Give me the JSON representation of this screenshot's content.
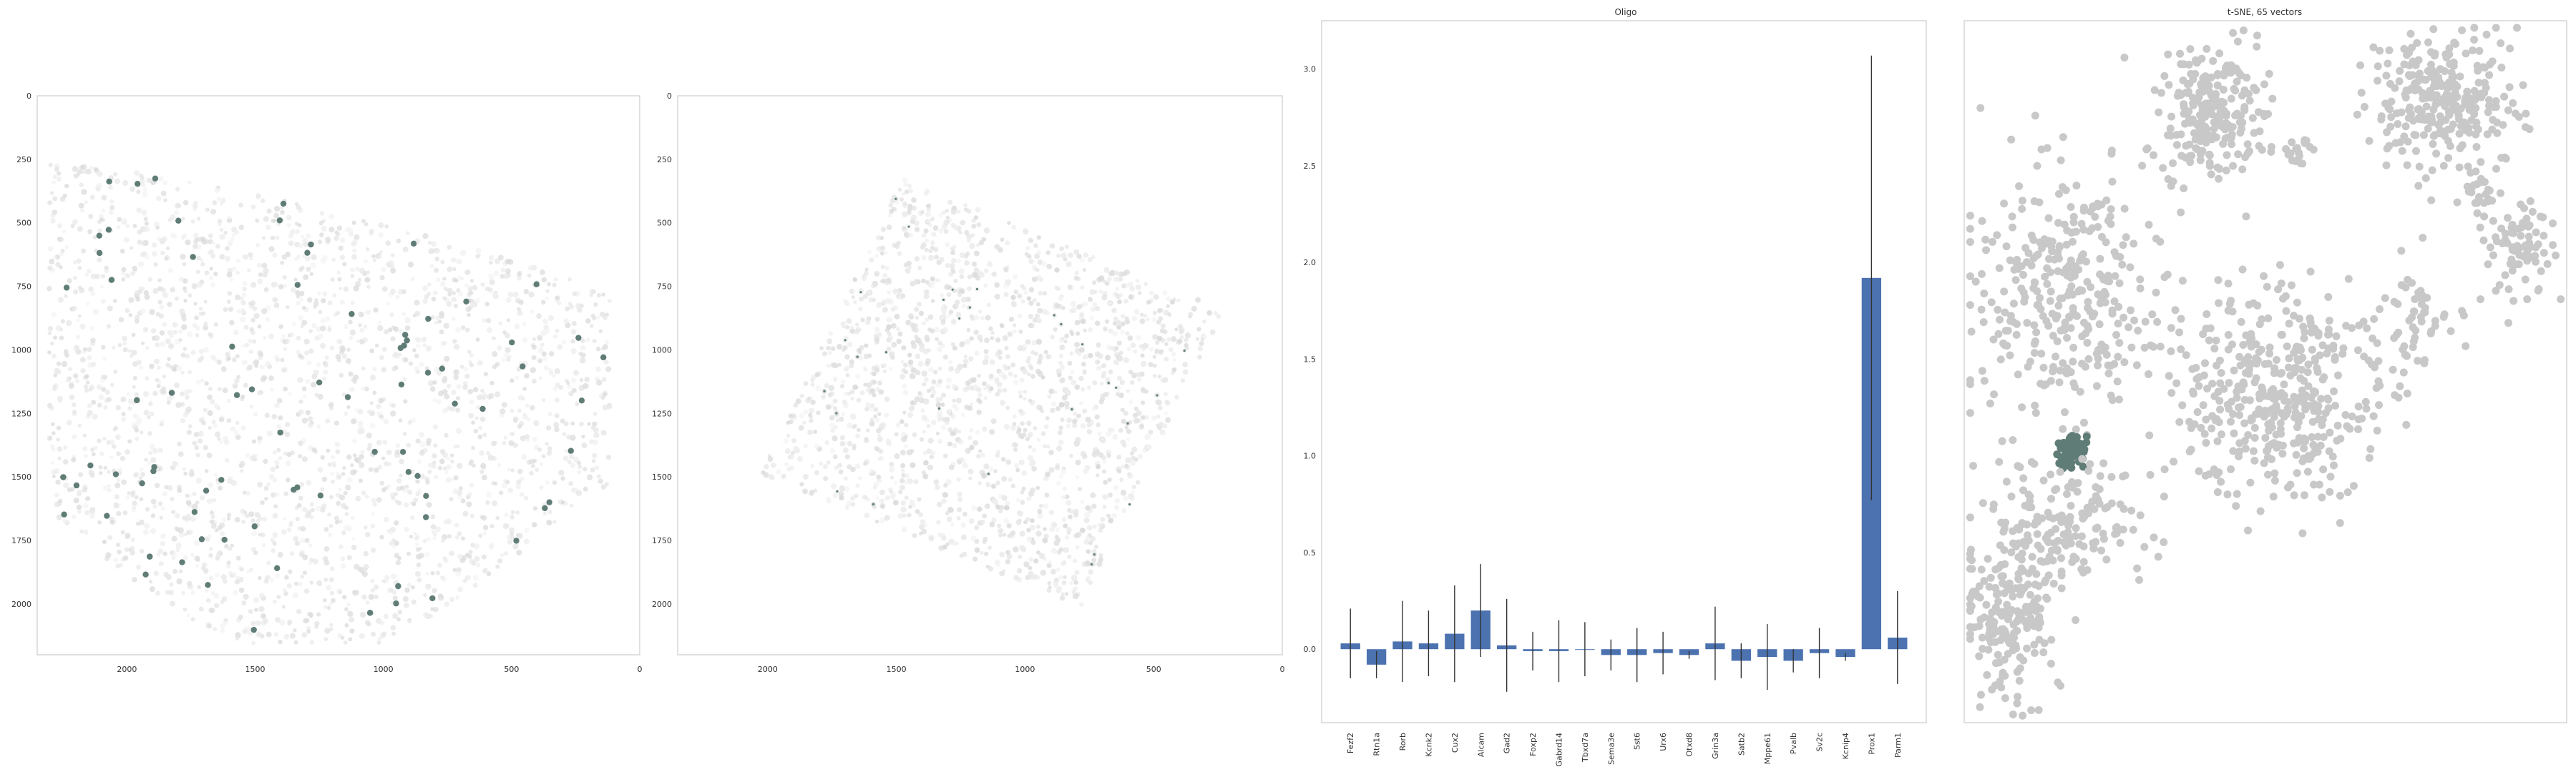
{
  "theme": {
    "bar_color": "#4c72b0",
    "highlight_color": "#5f7d76",
    "gray_color": "#c8c8c8",
    "frame_color": "#cccccc"
  },
  "panels": {
    "spatial_ticks_x": [
      "2000",
      "1500",
      "1000",
      "500",
      "0"
    ],
    "spatial_ticks_y": [
      "0",
      "250",
      "500",
      "750",
      "1000",
      "1250",
      "1500",
      "1750",
      "2000"
    ],
    "bar_title": "Oligo",
    "tsne_title": "t-SNE, 65 vectors"
  },
  "chart_data": [
    {
      "type": "scatter",
      "xlim": [
        2350,
        0
      ],
      "ylim": [
        2200,
        0
      ],
      "x_ticks": [
        2000,
        1500,
        1000,
        500,
        0
      ],
      "y_ticks": [
        0,
        250,
        500,
        750,
        1000,
        1250,
        1500,
        1750,
        2000
      ],
      "grid": false,
      "description_of_points": "spatial cell map, gray background cells with highlighted cluster cells"
    },
    {
      "type": "scatter",
      "xlim": [
        2350,
        0
      ],
      "ylim": [
        2200,
        0
      ],
      "x_ticks": [
        2000,
        1500,
        1000,
        500,
        0
      ],
      "y_ticks": [
        0,
        250,
        500,
        750,
        1000,
        1250,
        1500,
        1750,
        2000
      ],
      "grid": false
    },
    {
      "type": "bar",
      "title": "Oligo",
      "ylim": [
        -0.38,
        3.25
      ],
      "y_ticks": [
        0.0,
        0.5,
        1.0,
        1.5,
        2.0,
        2.5,
        3.0
      ],
      "categories": [
        "Fezf2",
        "Rtn1a",
        "Rorb",
        "Kcnk2",
        "Cux2",
        "Alcam",
        "Gad2",
        "Foxp2",
        "Gabrd14",
        "Tbxd7a",
        "Sema3e",
        "Sst6",
        "Urx6",
        "Otxd8",
        "Grin3a",
        "Satb2",
        "Mppe61",
        "Pvalb",
        "Sv2c",
        "Kcnip4",
        "Prox1",
        "Parm1"
      ],
      "values": [
        0.03,
        -0.08,
        0.04,
        0.03,
        0.08,
        0.2,
        0.02,
        -0.01,
        -0.01,
        0.0,
        -0.03,
        -0.03,
        -0.02,
        -0.03,
        0.03,
        -0.06,
        -0.04,
        -0.06,
        -0.02,
        -0.04,
        1.92,
        0.06
      ],
      "errors": [
        0.18,
        0.07,
        0.21,
        0.17,
        0.25,
        0.24,
        0.24,
        0.1,
        0.16,
        0.14,
        0.08,
        0.14,
        0.11,
        0.02,
        0.19,
        0.09,
        0.17,
        0.06,
        0.13,
        0.02,
        1.15,
        0.24
      ],
      "grid": false
    },
    {
      "type": "scatter",
      "title": "t-SNE, 65 vectors",
      "grid": false,
      "clusters": [
        {
          "label": "gray",
          "cx": 0.405,
          "cy": 0.13,
          "n": 230
        },
        {
          "label": "gray",
          "cx": 0.56,
          "cy": 0.185,
          "n": 18
        },
        {
          "label": "gray",
          "cx": 0.795,
          "cy": 0.12,
          "n": 280
        },
        {
          "label": "gray",
          "cx": 0.86,
          "cy": 0.245,
          "n": 22
        },
        {
          "label": "gray",
          "cx": 0.925,
          "cy": 0.33,
          "n": 80
        },
        {
          "label": "gray",
          "cx": 0.17,
          "cy": 0.38,
          "n": 340
        },
        {
          "label": "gray",
          "cx": 0.525,
          "cy": 0.53,
          "n": 420
        },
        {
          "label": "gray",
          "cx": 0.74,
          "cy": 0.43,
          "n": 60
        },
        {
          "label": "highlight",
          "cx": 0.18,
          "cy": 0.615,
          "n": 70
        },
        {
          "label": "gray",
          "cx": 0.17,
          "cy": 0.71,
          "n": 160
        },
        {
          "label": "gray",
          "cx": 0.075,
          "cy": 0.85,
          "n": 200
        }
      ]
    }
  ]
}
